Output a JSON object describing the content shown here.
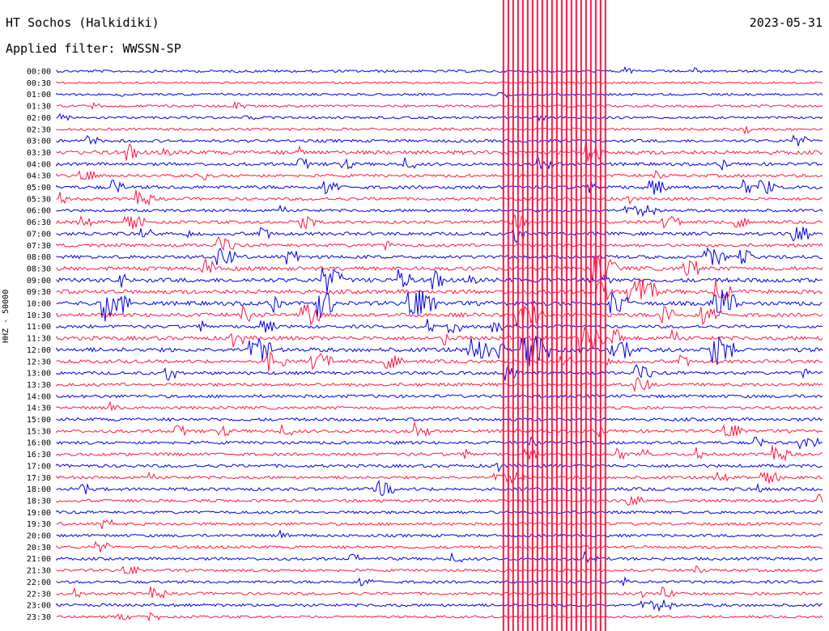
{
  "header": {
    "station": "HT Sochos (Halkidiki)",
    "date": "2023-05-31",
    "filter": "Applied filter: WWSSN-SP"
  },
  "chart_data": {
    "type": "line",
    "title": "HT Sochos (Halkidiki)",
    "subtitle": "Applied filter: WWSSN-SP",
    "ylabel": "HHZ - 50000",
    "xlabel": "",
    "grid": false,
    "colors": [
      "#0000e0",
      "#ff1744"
    ],
    "row_labels": [
      "00:00",
      "00:30",
      "01:00",
      "01:30",
      "02:00",
      "02:30",
      "03:00",
      "03:30",
      "04:00",
      "04:30",
      "05:00",
      "05:30",
      "06:00",
      "06:30",
      "07:00",
      "07:30",
      "08:00",
      "08:30",
      "09:00",
      "09:30",
      "10:00",
      "10:30",
      "11:00",
      "11:30",
      "12:00",
      "12:30",
      "13:00",
      "13:30",
      "14:00",
      "14:30",
      "15:00",
      "15:30",
      "16:00",
      "16:30",
      "17:00",
      "17:30",
      "18:00",
      "18:30",
      "19:00",
      "19:30",
      "20:00",
      "20:30",
      "21:00",
      "21:30",
      "22:00",
      "22:30",
      "23:00",
      "23:30"
    ],
    "row_activity": [
      0.35,
      0.15,
      0.25,
      0.3,
      0.3,
      0.35,
      0.5,
      0.9,
      0.6,
      0.5,
      0.7,
      0.55,
      0.5,
      0.55,
      0.7,
      0.6,
      0.7,
      0.9,
      1.0,
      1.0,
      1.0,
      0.9,
      0.6,
      0.9,
      1.0,
      0.7,
      0.6,
      0.6,
      0.6,
      0.5,
      0.6,
      0.6,
      0.55,
      0.55,
      0.6,
      0.5,
      0.6,
      0.5,
      0.45,
      0.5,
      0.45,
      0.5,
      0.5,
      0.45,
      0.45,
      0.45,
      0.5,
      0.3
    ],
    "saturated_window_minutes": [
      17.5,
      21.5
    ]
  }
}
